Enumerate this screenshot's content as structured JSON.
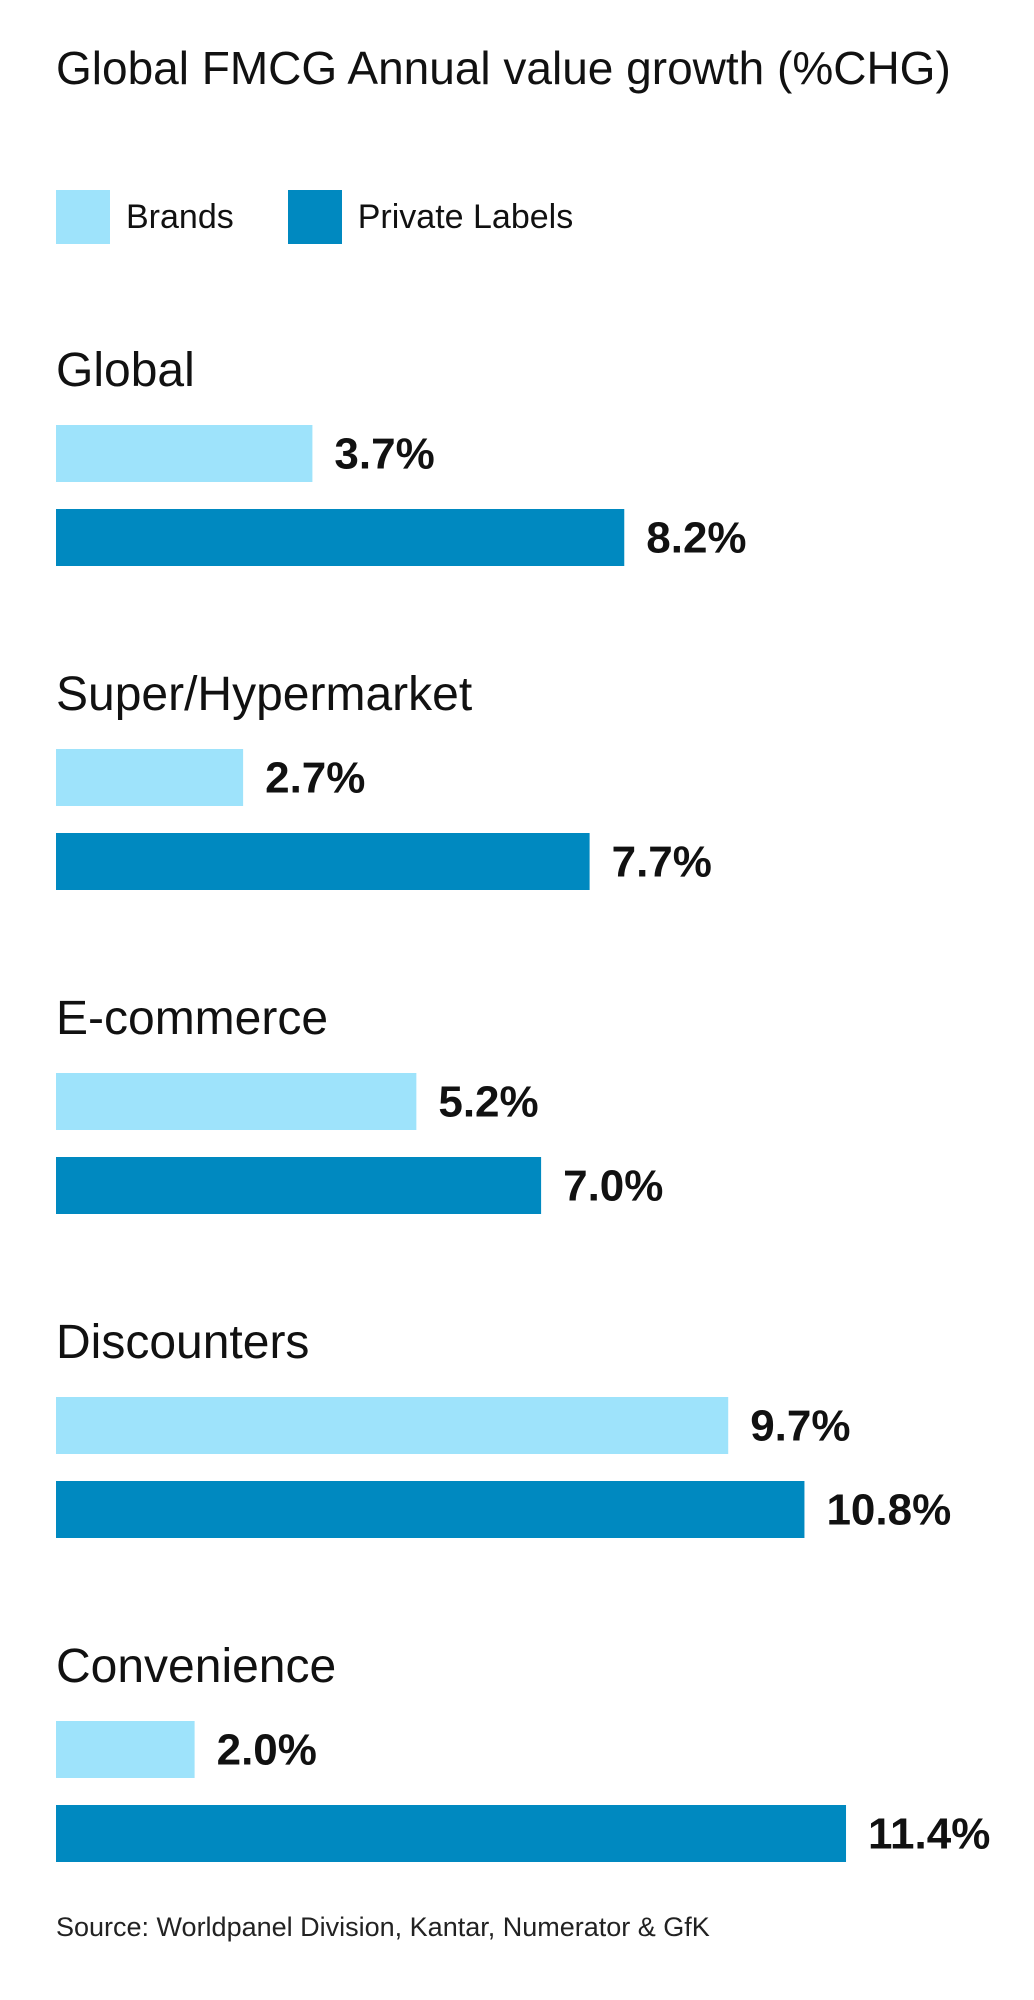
{
  "chart_data": {
    "type": "bar",
    "orientation": "horizontal",
    "title": "Global FMCG Annual value growth (%CHG)",
    "categories": [
      "Global",
      "Super/Hypermarket",
      "E-commerce",
      "Discounters",
      "Convenience"
    ],
    "series": [
      {
        "name": "Brands",
        "color": "#9ee3fb",
        "values": [
          3.7,
          2.7,
          5.2,
          9.7,
          2.0
        ],
        "labels": [
          "3.7%",
          "2.7%",
          "5.2%",
          "9.7%",
          "2.0%"
        ]
      },
      {
        "name": "Private Labels",
        "color": "#0089c0",
        "values": [
          8.2,
          7.7,
          7.0,
          10.8,
          11.4
        ],
        "labels": [
          "8.2%",
          "7.7%",
          "7.0%",
          "10.8%",
          "11.4%"
        ]
      }
    ],
    "xlim": [
      0,
      11.4
    ],
    "grid": false,
    "legend": "top-left",
    "source": "Source: Worldpanel Division, Kantar, Numerator & GfK"
  }
}
